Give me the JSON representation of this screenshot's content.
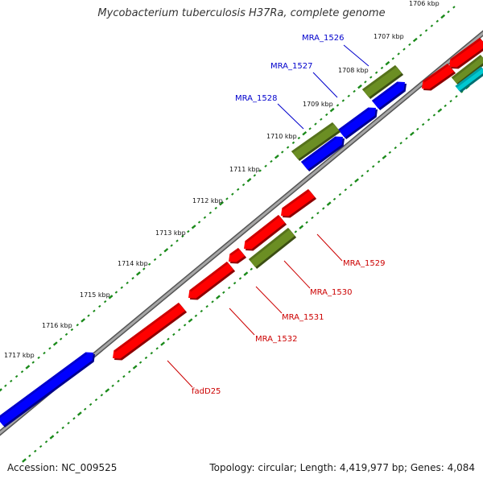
{
  "title": "Mycobacterium tuberculosis H37Ra, complete genome",
  "footer": {
    "accession": "Accession: NC_009525",
    "summary": "Topology: circular; Length: 4,419,977 bp; Genes: 4,084"
  },
  "colors": {
    "backbone": "#8c8c8c",
    "tick": "#1a8a1a",
    "forward_gene": "#0000ff",
    "reverse_gene": "#ff0000",
    "olive_feature": "#6b8e23",
    "cyan_feature": "#00c8d0",
    "forward_label": "#0000cc",
    "reverse_label": "#cc0000"
  },
  "ticks": [
    "1706 kbp",
    "1707 kbp",
    "1708 kbp",
    "1709 kbp",
    "1710 kbp",
    "1711 kbp",
    "1712 kbp",
    "1713 kbp",
    "1714 kbp",
    "1715 kbp",
    "1716 kbp",
    "1717 kbp"
  ],
  "genes": {
    "forward": [
      "MRA_1526",
      "MRA_1527",
      "MRA_1528"
    ],
    "reverse": [
      "MRA_1529",
      "MRA_1530",
      "MRA_1531",
      "MRA_1532",
      "fadD25"
    ]
  }
}
